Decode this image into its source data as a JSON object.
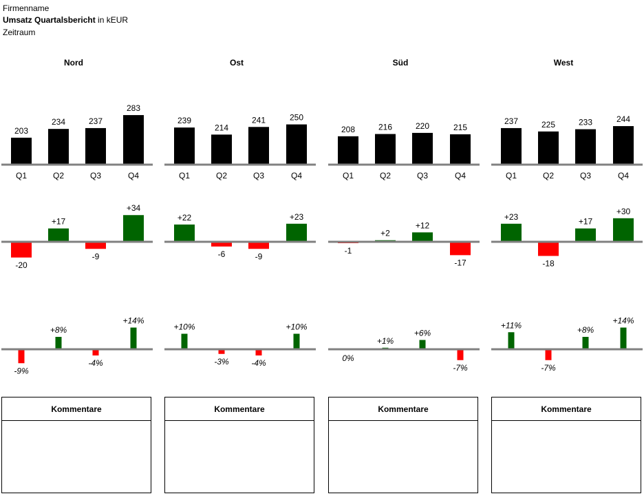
{
  "header": {
    "company": "Firmenname",
    "title_bold": "Umsatz Quartalsbericht",
    "title_unit": " in kEUR",
    "period": "Zeitraum"
  },
  "comments_label": "Kommentare",
  "colors": {
    "bar": "#000000",
    "positive": "#006400",
    "negative": "#ff0000",
    "axis": "#808080"
  },
  "chart_data": [
    {
      "type": "bar",
      "region": "Nord",
      "categories": [
        "Q1",
        "Q2",
        "Q3",
        "Q4"
      ],
      "values": [
        203,
        234,
        237,
        283
      ],
      "delta_abs": [
        -20,
        17,
        -9,
        34
      ],
      "delta_abs_labels": [
        "-20",
        "+17",
        "-9",
        "+34"
      ],
      "delta_pct": [
        -9,
        8,
        -4,
        14
      ],
      "delta_pct_labels": [
        "-9%",
        "+8%",
        "-4%",
        "+14%"
      ]
    },
    {
      "type": "bar",
      "region": "Ost",
      "categories": [
        "Q1",
        "Q2",
        "Q3",
        "Q4"
      ],
      "values": [
        239,
        214,
        241,
        250
      ],
      "delta_abs": [
        22,
        -6,
        -9,
        23
      ],
      "delta_abs_labels": [
        "+22",
        "-6",
        "-9",
        "+23"
      ],
      "delta_pct": [
        10,
        -3,
        -4,
        10
      ],
      "delta_pct_labels": [
        "+10%",
        "-3%",
        "-4%",
        "+10%"
      ]
    },
    {
      "type": "bar",
      "region": "Süd",
      "categories": [
        "Q1",
        "Q2",
        "Q3",
        "Q4"
      ],
      "values": [
        208,
        216,
        220,
        215
      ],
      "delta_abs": [
        -1,
        2,
        12,
        -17
      ],
      "delta_abs_labels": [
        "-1",
        "+2",
        "+12",
        "-17"
      ],
      "delta_pct": [
        0,
        1,
        6,
        -7
      ],
      "delta_pct_labels": [
        "0%",
        "+1%",
        "+6%",
        "-7%"
      ]
    },
    {
      "type": "bar",
      "region": "West",
      "categories": [
        "Q1",
        "Q2",
        "Q3",
        "Q4"
      ],
      "values": [
        237,
        225,
        233,
        244
      ],
      "delta_abs": [
        23,
        -18,
        17,
        30
      ],
      "delta_abs_labels": [
        "+23",
        "-18",
        "+17",
        "+30"
      ],
      "delta_pct": [
        11,
        -7,
        8,
        14
      ],
      "delta_pct_labels": [
        "+11%",
        "-7%",
        "+8%",
        "+14%"
      ]
    }
  ]
}
